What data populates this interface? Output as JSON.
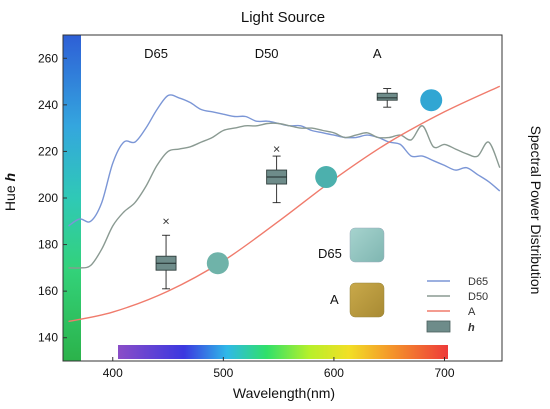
{
  "chart_data": {
    "type": "line",
    "title": "Light Source",
    "xlabel": "Wavelength(nm)",
    "ylabel": "Hue h",
    "ylabel_main": "Hue",
    "ylabel_var": "h",
    "y2label": "Spectral Power Distribution",
    "xlim": [
      355,
      752
    ],
    "ylim": [
      130,
      270
    ],
    "xticks": [
      400,
      500,
      600,
      700
    ],
    "yticks": [
      140,
      160,
      180,
      200,
      220,
      240,
      260
    ],
    "conditions": [
      "D65",
      "D50",
      "A"
    ],
    "series": [
      {
        "name": "D65",
        "color": "#7b96d6",
        "x": [
          360,
          370,
          380,
          390,
          400,
          410,
          420,
          430,
          440,
          450,
          460,
          470,
          480,
          490,
          500,
          510,
          520,
          530,
          540,
          550,
          560,
          570,
          580,
          590,
          600,
          610,
          620,
          630,
          640,
          650,
          660,
          670,
          680,
          690,
          700,
          710,
          720,
          730,
          740,
          750
        ],
        "y": [
          188,
          191,
          190,
          198,
          215,
          224,
          224,
          230,
          238,
          244,
          243,
          241,
          238,
          237,
          236,
          235,
          235,
          233,
          233,
          232,
          231,
          231,
          229,
          228,
          227,
          226,
          226,
          227,
          226,
          224,
          223,
          218,
          218,
          216,
          214,
          212,
          213,
          210,
          207,
          203
        ]
      },
      {
        "name": "D50",
        "color": "#8a9a92",
        "x": [
          360,
          370,
          380,
          390,
          400,
          410,
          420,
          430,
          440,
          450,
          460,
          470,
          480,
          490,
          500,
          510,
          520,
          530,
          540,
          550,
          560,
          570,
          580,
          590,
          600,
          610,
          620,
          630,
          640,
          650,
          660,
          670,
          680,
          690,
          700,
          710,
          720,
          730,
          740,
          750
        ],
        "y": [
          170,
          170,
          171,
          178,
          188,
          194,
          198,
          205,
          214,
          220,
          221,
          222,
          224,
          226,
          229,
          230,
          231,
          231,
          232,
          232,
          231,
          230,
          230,
          229,
          228,
          226,
          227,
          228,
          226,
          226,
          227,
          225,
          231,
          222,
          223,
          221,
          219,
          218,
          224,
          213
        ]
      },
      {
        "name": "A",
        "color": "#f07b6c",
        "x": [
          360,
          400,
          450,
          500,
          550,
          600,
          650,
          700,
          750
        ],
        "y": [
          147,
          151,
          160,
          173,
          190,
          208,
          224,
          237,
          248
        ]
      }
    ],
    "boxplots": [
      {
        "condition": "D65",
        "x": 450,
        "min": 161,
        "q1": 169,
        "median": 172,
        "q3": 175,
        "max": 184,
        "outlier": 190
      },
      {
        "condition": "D50",
        "x": 550,
        "min": 198,
        "q1": 206,
        "median": 209,
        "q3": 212,
        "max": 218,
        "outlier": 221
      },
      {
        "condition": "A",
        "x": 650,
        "min": 239,
        "q1": 242,
        "median": 243,
        "q3": 245,
        "max": 247,
        "outlier": null
      }
    ],
    "hue_dots": [
      {
        "condition": "D65",
        "x": 495,
        "y": 172,
        "color": "#6fb3a9"
      },
      {
        "condition": "D50",
        "x": 593,
        "y": 209,
        "color": "#4cb0ad"
      },
      {
        "condition": "A",
        "x": 688,
        "y": 242,
        "color": "#31a6d3"
      }
    ],
    "swatches": [
      {
        "label": "D65",
        "color": "#8fc2bd"
      },
      {
        "label": "A",
        "color": "#b99a3d"
      }
    ],
    "legend": [
      {
        "label": "D65",
        "color": "#7b96d6",
        "kind": "line"
      },
      {
        "label": "D50",
        "color": "#8a9a92",
        "kind": "line"
      },
      {
        "label": "A",
        "color": "#f07b6c",
        "kind": "line"
      },
      {
        "label": "h",
        "color": "#6e8c8a",
        "kind": "box"
      }
    ],
    "legend_position": "bottom-right",
    "grid": false
  }
}
